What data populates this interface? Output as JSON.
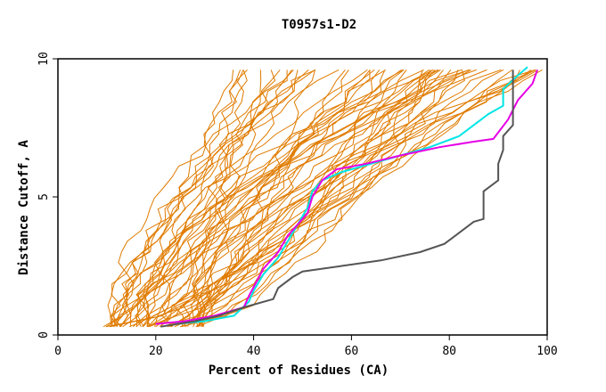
{
  "chart_data": {
    "type": "line",
    "title": "T0957s1-D2",
    "xlabel": "Percent of Residues (CA)",
    "ylabel": "Distance Cutoff, A",
    "xlim": [
      0,
      100
    ],
    "ylim": [
      0,
      10
    ],
    "x_ticks": [
      "0",
      "20",
      "40",
      "60",
      "80",
      "100"
    ],
    "y_ticks": [
      "0",
      "5",
      "10"
    ],
    "grid": false,
    "legend": "none",
    "colors": {
      "background_series": "#e07b00",
      "cyan": "#00e5e5",
      "magenta": "#e600e6",
      "gray": "#555555"
    },
    "background_series_count": 60,
    "highlight_series": [
      {
        "color": "cyan",
        "points": [
          [
            24,
            0.4
          ],
          [
            30,
            0.5
          ],
          [
            36,
            0.7
          ],
          [
            39,
            1.2
          ],
          [
            40,
            1.6
          ],
          [
            42,
            2.2
          ],
          [
            45,
            2.8
          ],
          [
            47,
            3.4
          ],
          [
            49,
            4.0
          ],
          [
            51,
            4.6
          ],
          [
            52,
            5.2
          ],
          [
            54,
            5.6
          ],
          [
            58,
            5.9
          ],
          [
            64,
            6.2
          ],
          [
            70,
            6.5
          ],
          [
            76,
            6.8
          ],
          [
            82,
            7.2
          ],
          [
            85,
            7.6
          ],
          [
            88,
            8.0
          ],
          [
            91,
            8.3
          ],
          [
            91,
            8.9
          ],
          [
            94,
            9.4
          ],
          [
            96,
            9.7
          ]
        ]
      },
      {
        "color": "magenta",
        "points": [
          [
            20,
            0.4
          ],
          [
            26,
            0.5
          ],
          [
            32,
            0.7
          ],
          [
            38,
            1.0
          ],
          [
            39,
            1.4
          ],
          [
            42,
            2.4
          ],
          [
            45,
            3.0
          ],
          [
            47,
            3.6
          ],
          [
            49,
            4.0
          ],
          [
            51,
            4.4
          ],
          [
            52,
            5.0
          ],
          [
            54,
            5.6
          ],
          [
            57,
            6.0
          ],
          [
            63,
            6.2
          ],
          [
            70,
            6.5
          ],
          [
            78,
            6.8
          ],
          [
            85,
            7.0
          ],
          [
            89,
            7.1
          ],
          [
            92,
            7.8
          ],
          [
            94,
            8.5
          ],
          [
            97,
            9.1
          ],
          [
            98,
            9.6
          ]
        ]
      },
      {
        "color": "gray",
        "points": [
          [
            21,
            0.3
          ],
          [
            28,
            0.5
          ],
          [
            33,
            0.7
          ],
          [
            38,
            1.0
          ],
          [
            44,
            1.3
          ],
          [
            45,
            1.7
          ],
          [
            48,
            2.1
          ],
          [
            50,
            2.3
          ],
          [
            58,
            2.5
          ],
          [
            66,
            2.7
          ],
          [
            74,
            3.0
          ],
          [
            79,
            3.3
          ],
          [
            82,
            3.7
          ],
          [
            85,
            4.1
          ],
          [
            87,
            4.2
          ],
          [
            87,
            5.2
          ],
          [
            90,
            5.6
          ],
          [
            90,
            6.2
          ],
          [
            91,
            6.7
          ],
          [
            91,
            7.2
          ],
          [
            93,
            7.6
          ],
          [
            93,
            8.2
          ],
          [
            93,
            9.6
          ]
        ]
      }
    ]
  }
}
